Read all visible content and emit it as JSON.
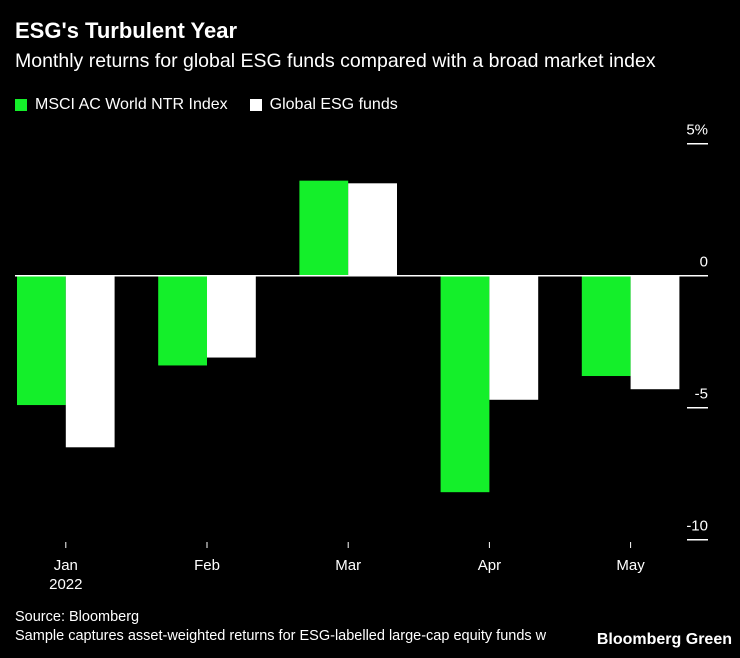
{
  "title": "ESG's Turbulent Year",
  "subtitle": "Monthly returns for global ESG funds compared with a broad market index",
  "source": "Source: Bloomberg",
  "note": "Sample captures asset-weighted returns for ESG-labelled large-cap equity funds w",
  "brand": "Bloomberg Green",
  "chart_data": {
    "type": "bar",
    "categories": [
      "Jan",
      "Feb",
      "Mar",
      "Apr",
      "May"
    ],
    "category_sublabel": "2022",
    "series": [
      {
        "name": "MSCI AC World NTR Index",
        "color": "#14ef2a",
        "values": [
          -4.9,
          -3.4,
          3.6,
          -8.2,
          -3.8
        ]
      },
      {
        "name": "Global ESG funds",
        "color": "#ffffff",
        "values": [
          -6.5,
          -3.1,
          3.5,
          -4.7,
          -4.3
        ]
      }
    ],
    "yticks": [
      {
        "v": 5,
        "label": "5%"
      },
      {
        "v": 0,
        "label": "0"
      },
      {
        "v": -5,
        "label": "-5"
      },
      {
        "v": -10,
        "label": "-10"
      }
    ],
    "ylim": [
      -10,
      5
    ],
    "grid": false,
    "legend": "top-left"
  }
}
